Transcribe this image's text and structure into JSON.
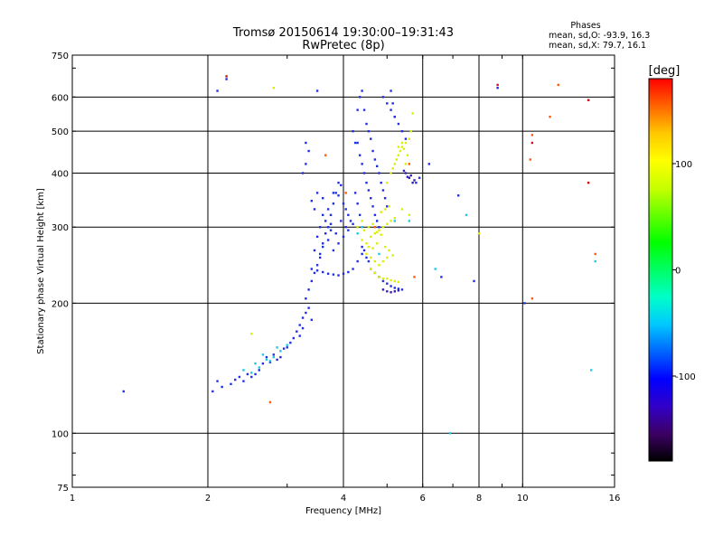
{
  "chart_data": {
    "type": "scatter",
    "title": "Tromsø 20150614 19:30:00–19:31:43",
    "subtitle": "RwPretec (8p)",
    "stats": {
      "heading": "Phases",
      "line_o": "mean, sd,O: -93.9, 16.3",
      "line_x": "mean, sd,X: 79.7, 16.1"
    },
    "xlabel": "Frequency [MHz]",
    "ylabel": "Stationary phase Virtual Height [km]",
    "xscale": "log",
    "yscale": "log",
    "xlim": [
      1,
      16
    ],
    "ylim": [
      75,
      750
    ],
    "xticks": [
      1,
      2,
      4,
      6,
      8,
      10,
      16
    ],
    "xtick_labels": [
      "1",
      "2",
      "4",
      "6",
      "8",
      "10",
      "16"
    ],
    "yticks": [
      75,
      100,
      200,
      300,
      400,
      500,
      600,
      750
    ],
    "ytick_labels": [
      "75",
      "100",
      "200",
      "300",
      "400",
      "500",
      "600",
      "750"
    ],
    "x_gridlines": [
      2,
      4,
      6,
      8,
      10
    ],
    "y_gridlines": [
      100,
      200,
      300,
      400,
      500,
      600
    ],
    "grid": true,
    "colorbar": {
      "label": "[deg]",
      "min": -180,
      "max": 180,
      "ticks": [
        100,
        0,
        -100
      ],
      "tick_labels": [
        "100",
        "0",
        "-100"
      ],
      "colors": [
        "#000000",
        "#3c0064",
        "#3200c8",
        "#0000ff",
        "#0064ff",
        "#00c8ff",
        "#00ffc8",
        "#00ff64",
        "#00ff00",
        "#64ff00",
        "#c8ff00",
        "#ffff00",
        "#ffc800",
        "#ff6400",
        "#ff0000"
      ]
    },
    "series": [
      {
        "phase": -95,
        "color": "#1f2fe6",
        "points": [
          [
            2.05,
            125
          ],
          [
            2.1,
            132
          ],
          [
            2.15,
            128
          ],
          [
            2.25,
            130
          ],
          [
            2.3,
            133
          ],
          [
            2.35,
            135
          ],
          [
            2.4,
            132
          ],
          [
            2.45,
            137
          ],
          [
            2.5,
            135
          ],
          [
            2.55,
            137
          ],
          [
            2.6,
            140
          ],
          [
            2.65,
            145
          ],
          [
            2.7,
            150
          ],
          [
            2.75,
            146
          ],
          [
            2.8,
            152
          ],
          [
            2.85,
            148
          ],
          [
            2.9,
            150
          ],
          [
            2.95,
            157
          ],
          [
            3.0,
            158
          ],
          [
            3.05,
            162
          ],
          [
            3.1,
            166
          ],
          [
            3.15,
            172
          ],
          [
            3.2,
            178
          ],
          [
            3.25,
            185
          ],
          [
            3.3,
            190
          ],
          [
            3.35,
            195
          ],
          [
            3.4,
            183
          ],
          [
            3.3,
            205
          ],
          [
            3.35,
            215
          ],
          [
            3.4,
            225
          ],
          [
            3.45,
            235
          ],
          [
            3.5,
            245
          ],
          [
            3.55,
            260
          ],
          [
            3.6,
            275
          ],
          [
            3.65,
            290
          ],
          [
            3.7,
            300
          ],
          [
            3.75,
            320
          ],
          [
            3.8,
            340
          ],
          [
            3.85,
            360
          ],
          [
            3.9,
            380
          ],
          [
            3.95,
            375
          ],
          [
            4.0,
            340
          ],
          [
            4.05,
            330
          ],
          [
            4.1,
            320
          ],
          [
            4.15,
            310
          ],
          [
            3.4,
            345
          ],
          [
            3.5,
            360
          ],
          [
            3.6,
            350
          ],
          [
            3.7,
            330
          ],
          [
            3.8,
            360
          ],
          [
            3.9,
            355
          ],
          [
            3.45,
            330
          ],
          [
            3.6,
            320
          ],
          [
            3.75,
            305
          ],
          [
            3.5,
            285
          ],
          [
            3.6,
            270
          ],
          [
            3.7,
            280
          ],
          [
            3.8,
            265
          ],
          [
            3.9,
            275
          ],
          [
            4.0,
            285
          ],
          [
            4.1,
            295
          ],
          [
            4.2,
            305
          ],
          [
            4.3,
            300
          ],
          [
            3.4,
            240
          ],
          [
            3.5,
            238
          ],
          [
            3.6,
            236
          ],
          [
            3.7,
            234
          ],
          [
            3.8,
            233
          ],
          [
            3.9,
            232
          ],
          [
            4.0,
            234
          ],
          [
            4.1,
            236
          ],
          [
            4.2,
            240
          ],
          [
            4.3,
            250
          ],
          [
            4.4,
            260
          ],
          [
            3.55,
            300
          ],
          [
            3.65,
            310
          ],
          [
            3.75,
            295
          ],
          [
            3.85,
            290
          ],
          [
            3.95,
            310
          ],
          [
            4.05,
            300
          ],
          [
            3.3,
            420
          ],
          [
            3.35,
            450
          ],
          [
            3.3,
            470
          ],
          [
            3.25,
            400
          ],
          [
            4.3,
            560
          ],
          [
            4.35,
            600
          ],
          [
            4.4,
            620
          ],
          [
            4.45,
            560
          ],
          [
            4.5,
            520
          ],
          [
            4.55,
            500
          ],
          [
            4.6,
            480
          ],
          [
            4.65,
            450
          ],
          [
            4.7,
            430
          ],
          [
            4.75,
            415
          ],
          [
            4.8,
            400
          ],
          [
            4.85,
            380
          ],
          [
            4.9,
            365
          ],
          [
            4.95,
            350
          ],
          [
            5.0,
            335
          ],
          [
            4.3,
            470
          ],
          [
            4.35,
            440
          ],
          [
            4.4,
            420
          ],
          [
            4.45,
            400
          ],
          [
            4.5,
            380
          ],
          [
            4.55,
            365
          ],
          [
            4.6,
            350
          ],
          [
            4.65,
            335
          ],
          [
            4.7,
            320
          ],
          [
            4.75,
            310
          ],
          [
            4.8,
            300
          ],
          [
            4.25,
            360
          ],
          [
            4.3,
            340
          ],
          [
            4.35,
            320
          ],
          [
            4.2,
            500
          ],
          [
            4.25,
            470
          ],
          [
            4.9,
            600
          ],
          [
            5.0,
            580
          ],
          [
            5.1,
            560
          ],
          [
            5.2,
            540
          ],
          [
            5.3,
            520
          ],
          [
            5.4,
            500
          ],
          [
            5.5,
            480
          ],
          [
            5.1,
            620
          ],
          [
            5.15,
            580
          ],
          [
            5.2,
            540
          ],
          [
            4.6,
            240
          ],
          [
            4.7,
            235
          ],
          [
            4.8,
            230
          ],
          [
            4.9,
            225
          ],
          [
            5.0,
            222
          ],
          [
            5.1,
            219
          ],
          [
            5.2,
            217
          ],
          [
            5.3,
            216
          ],
          [
            5.4,
            215
          ],
          [
            4.5,
            255
          ],
          [
            4.55,
            250
          ],
          [
            4.4,
            270
          ],
          [
            4.45,
            265
          ],
          [
            3.45,
            265
          ],
          [
            3.55,
            255
          ],
          [
            3.25,
            175
          ],
          [
            3.2,
            168
          ],
          [
            2.1,
            620
          ],
          [
            3.5,
            620
          ],
          [
            5.8,
            380
          ],
          [
            5.9,
            390
          ],
          [
            6.2,
            420
          ],
          [
            6.6,
            230
          ],
          [
            7.2,
            355
          ],
          [
            7.8,
            225
          ],
          [
            8.8,
            630
          ],
          [
            10.1,
            200
          ],
          [
            14.0,
            590
          ],
          [
            1.3,
            125
          ],
          [
            2.2,
            660
          ]
        ]
      },
      {
        "phase": -120,
        "color": "#3a1ab4",
        "points": [
          [
            5.6,
            390
          ],
          [
            5.7,
            380
          ],
          [
            5.65,
            395
          ],
          [
            5.75,
            385
          ],
          [
            5.5,
            400
          ],
          [
            5.55,
            392
          ],
          [
            5.45,
            405
          ],
          [
            4.9,
            215
          ],
          [
            5.0,
            213
          ],
          [
            5.1,
            212
          ],
          [
            5.2,
            213
          ],
          [
            5.3,
            214
          ]
        ]
      },
      {
        "phase": 0,
        "color": "#1ec8e6",
        "points": [
          [
            2.4,
            140
          ],
          [
            2.5,
            138
          ],
          [
            2.6,
            142
          ],
          [
            2.7,
            148
          ],
          [
            2.8,
            150
          ],
          [
            2.9,
            155
          ],
          [
            3.0,
            160
          ],
          [
            2.55,
            145
          ],
          [
            2.65,
            152
          ],
          [
            2.75,
            147
          ],
          [
            2.85,
            158
          ],
          [
            4.3,
            290
          ],
          [
            4.4,
            300
          ],
          [
            4.8,
            260
          ],
          [
            5.6,
            310
          ],
          [
            6.4,
            240
          ],
          [
            7.5,
            320
          ],
          [
            5.2,
            310
          ],
          [
            6.9,
            100
          ],
          [
            14.2,
            140
          ],
          [
            14.5,
            250
          ]
        ]
      },
      {
        "phase": 100,
        "color": "#dcf000",
        "points": [
          [
            4.4,
            280
          ],
          [
            4.5,
            275
          ],
          [
            4.6,
            285
          ],
          [
            4.7,
            290
          ],
          [
            4.8,
            295
          ],
          [
            4.9,
            300
          ],
          [
            5.0,
            305
          ],
          [
            5.1,
            310
          ],
          [
            5.2,
            315
          ],
          [
            4.45,
            295
          ],
          [
            4.55,
            300
          ],
          [
            4.65,
            305
          ],
          [
            4.75,
            292
          ],
          [
            4.85,
            288
          ],
          [
            4.95,
            270
          ],
          [
            5.05,
            265
          ],
          [
            5.15,
            258
          ],
          [
            4.5,
            260
          ],
          [
            4.6,
            255
          ],
          [
            4.7,
            250
          ],
          [
            4.8,
            245
          ],
          [
            4.9,
            250
          ],
          [
            5.0,
            255
          ],
          [
            4.55,
            270
          ],
          [
            4.65,
            268
          ],
          [
            4.75,
            275
          ],
          [
            4.6,
            240
          ],
          [
            4.7,
            235
          ],
          [
            4.8,
            230
          ],
          [
            4.9,
            228
          ],
          [
            5.0,
            228
          ],
          [
            5.1,
            226
          ],
          [
            5.2,
            225
          ],
          [
            5.3,
            224
          ],
          [
            5.0,
            380
          ],
          [
            5.1,
            400
          ],
          [
            5.2,
            420
          ],
          [
            5.3,
            440
          ],
          [
            5.4,
            460
          ],
          [
            5.5,
            470
          ],
          [
            5.6,
            480
          ],
          [
            5.65,
            500
          ],
          [
            5.7,
            550
          ],
          [
            5.15,
            410
          ],
          [
            5.25,
            430
          ],
          [
            5.35,
            450
          ],
          [
            5.45,
            455
          ],
          [
            5.55,
            440
          ],
          [
            5.3,
            460
          ],
          [
            5.4,
            470
          ],
          [
            5.5,
            420
          ],
          [
            4.85,
            325
          ],
          [
            4.95,
            330
          ],
          [
            5.05,
            335
          ],
          [
            5.4,
            330
          ],
          [
            5.6,
            320
          ],
          [
            4.4,
            310
          ],
          [
            4.3,
            300
          ],
          [
            2.5,
            170
          ],
          [
            2.8,
            630
          ],
          [
            8.0,
            290
          ]
        ]
      },
      {
        "phase": 150,
        "color": "#ff5a00",
        "points": [
          [
            2.75,
            118
          ],
          [
            3.65,
            440
          ],
          [
            4.05,
            360
          ],
          [
            10.5,
            205
          ],
          [
            11.5,
            540
          ],
          [
            12.0,
            640
          ],
          [
            14.0,
            380
          ],
          [
            14.5,
            260
          ],
          [
            10.5,
            490
          ],
          [
            10.4,
            430
          ],
          [
            5.6,
            420
          ],
          [
            5.75,
            230
          ],
          [
            4.7,
            300
          ]
        ]
      },
      {
        "phase": 175,
        "color": "#c81414",
        "points": [
          [
            2.2,
            670
          ],
          [
            8.8,
            640
          ],
          [
            10.5,
            470
          ],
          [
            14.0,
            380
          ],
          [
            14.0,
            590
          ]
        ]
      }
    ]
  }
}
